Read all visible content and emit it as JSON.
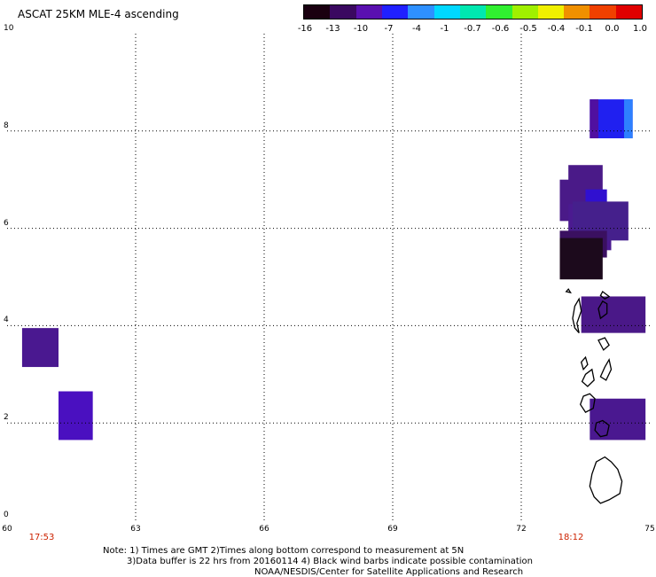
{
  "title": "ASCAT 25KM MLE-4 ascending",
  "colorbar": {
    "labels": [
      "-16",
      "-13",
      "-10",
      "-7",
      "-4",
      "-1",
      "-0.7",
      "-0.6",
      "-0.5",
      "-0.4",
      "-0.1",
      "0.0",
      "1.0"
    ],
    "colors": [
      "#1a0010",
      "#3a0860",
      "#5a10b0",
      "#2020ff",
      "#2e90ff",
      "#00d8ff",
      "#00e8b0",
      "#30f030",
      "#a0f000",
      "#f0f000",
      "#f09000",
      "#f04000",
      "#e00000"
    ]
  },
  "axes": {
    "y_ticks": [
      "10",
      "8",
      "6",
      "4",
      "2",
      "0"
    ],
    "x_ticks": [
      "60",
      "63",
      "66",
      "69",
      "72",
      "75"
    ],
    "x_range": [
      60,
      75
    ],
    "y_range": [
      0,
      10
    ],
    "grid": true,
    "grid_style": "dotted"
  },
  "times": [
    "17:53",
    "18:12"
  ],
  "notes": [
    "Note: 1) Times are GMT 2)Times along bottom correspond to measurement at 5N",
    "3)Data buffer is 22 hrs from 20160114 4) Black wind barbs indicate possible contamination",
    "NOAA/NESDIS/Center for Satellite Applications and Research"
  ],
  "swaths": [
    {
      "lon0": 60.35,
      "lon1": 61.2,
      "lat0": 3.15,
      "lat1": 3.95,
      "color": "#4a1890"
    },
    {
      "lon0": 61.2,
      "lon1": 62.0,
      "lat0": 1.65,
      "lat1": 2.65,
      "color": "#4a10c0"
    },
    {
      "lon0": 73.6,
      "lon1": 74.6,
      "lat0": 7.85,
      "lat1": 8.65,
      "color": "#2020f0"
    },
    {
      "lon0": 73.6,
      "lon1": 73.8,
      "lat0": 7.85,
      "lat1": 8.65,
      "color": "#5010a0"
    },
    {
      "lon0": 74.4,
      "lon1": 74.6,
      "lat0": 7.85,
      "lat1": 8.65,
      "color": "#2e80ff"
    },
    {
      "lon0": 73.1,
      "lon1": 73.9,
      "lat0": 6.4,
      "lat1": 7.3,
      "color": "#4a1a88"
    },
    {
      "lon0": 72.9,
      "lon1": 73.3,
      "lat0": 6.15,
      "lat1": 7.0,
      "color": "#4a1a88"
    },
    {
      "lon0": 73.5,
      "lon1": 74.0,
      "lat0": 6.1,
      "lat1": 6.8,
      "color": "#3010d0"
    },
    {
      "lon0": 73.1,
      "lon1": 74.1,
      "lat0": 5.55,
      "lat1": 6.5,
      "color": "#4b1a90"
    },
    {
      "lon0": 73.2,
      "lon1": 74.5,
      "lat0": 5.75,
      "lat1": 6.55,
      "color": "#45208c"
    },
    {
      "lon0": 72.9,
      "lon1": 74.0,
      "lat0": 5.4,
      "lat1": 5.95,
      "color": "#3a1060"
    },
    {
      "lon0": 72.9,
      "lon1": 73.9,
      "lat0": 4.95,
      "lat1": 5.8,
      "color": "#1c0a1c"
    },
    {
      "lon0": 73.4,
      "lon1": 74.9,
      "lat0": 3.85,
      "lat1": 4.6,
      "color": "#4a1888"
    },
    {
      "lon0": 73.6,
      "lon1": 74.9,
      "lat0": 1.65,
      "lat1": 2.5,
      "color": "#4a1890"
    }
  ],
  "coastlines": [
    [
      [
        73.75,
        1.2
      ],
      [
        73.95,
        1.3
      ],
      [
        74.1,
        1.2
      ],
      [
        74.25,
        1.05
      ],
      [
        74.35,
        0.8
      ],
      [
        74.3,
        0.55
      ],
      [
        74.05,
        0.42
      ],
      [
        73.85,
        0.35
      ],
      [
        73.7,
        0.48
      ],
      [
        73.6,
        0.7
      ],
      [
        73.65,
        0.95
      ]
    ],
    [
      [
        73.75,
        2.0
      ],
      [
        73.9,
        2.05
      ],
      [
        74.05,
        1.95
      ],
      [
        74.0,
        1.75
      ],
      [
        73.85,
        1.72
      ],
      [
        73.72,
        1.85
      ]
    ],
    [
      [
        73.45,
        2.55
      ],
      [
        73.6,
        2.6
      ],
      [
        73.72,
        2.5
      ],
      [
        73.68,
        2.3
      ],
      [
        73.5,
        2.22
      ],
      [
        73.38,
        2.38
      ]
    ],
    [
      [
        73.5,
        3.0
      ],
      [
        73.65,
        3.1
      ],
      [
        73.7,
        2.88
      ],
      [
        73.55,
        2.75
      ],
      [
        73.42,
        2.85
      ]
    ],
    [
      [
        73.4,
        3.25
      ],
      [
        73.5,
        3.35
      ],
      [
        73.55,
        3.2
      ],
      [
        73.45,
        3.1
      ]
    ],
    [
      [
        73.95,
        3.15
      ],
      [
        74.05,
        3.3
      ],
      [
        74.1,
        3.1
      ],
      [
        73.98,
        2.88
      ],
      [
        73.85,
        2.95
      ]
    ],
    [
      [
        73.8,
        3.7
      ],
      [
        73.95,
        3.75
      ],
      [
        74.05,
        3.6
      ],
      [
        73.92,
        3.5
      ]
    ],
    [
      [
        73.3,
        4.05
      ],
      [
        73.4,
        4.3
      ],
      [
        73.35,
        4.55
      ],
      [
        73.25,
        4.4
      ],
      [
        73.2,
        4.15
      ],
      [
        73.25,
        3.95
      ],
      [
        73.35,
        3.85
      ]
    ],
    [
      [
        73.85,
        4.15
      ],
      [
        74.0,
        4.25
      ],
      [
        74.0,
        4.45
      ],
      [
        73.9,
        4.5
      ],
      [
        73.8,
        4.35
      ]
    ],
    [
      [
        73.9,
        4.7
      ],
      [
        74.05,
        4.6
      ],
      [
        73.95,
        4.55
      ],
      [
        73.85,
        4.62
      ]
    ],
    [
      [
        73.05,
        4.7
      ],
      [
        73.1,
        4.75
      ],
      [
        73.15,
        4.68
      ]
    ]
  ]
}
